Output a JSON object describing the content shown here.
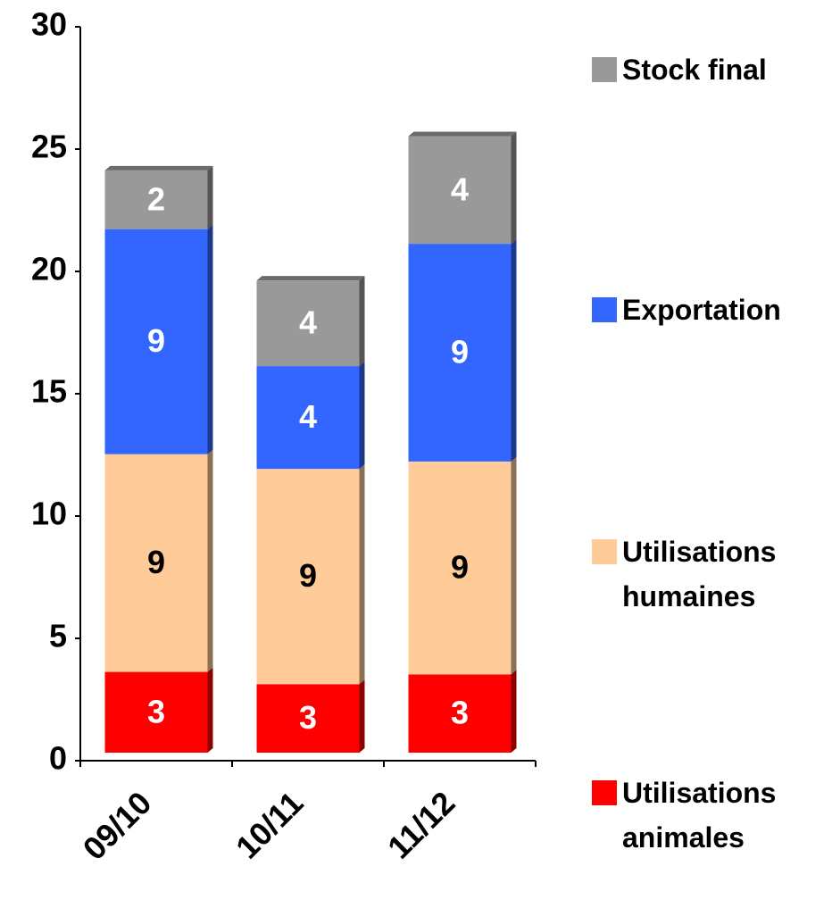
{
  "chart_data": {
    "type": "bar",
    "stacked": true,
    "categories": [
      "09/10",
      "10/11",
      "11/12"
    ],
    "series": [
      {
        "name": "Utilisations animales",
        "color": "#ff0000",
        "values": [
          3.3,
          2.8,
          3.2
        ],
        "value_labels": [
          "3",
          "3",
          "3"
        ]
      },
      {
        "name": "Utilisations humaines",
        "color": "#ffcc99",
        "values": [
          8.9,
          8.8,
          8.7
        ],
        "value_labels": [
          "9",
          "9",
          "9"
        ]
      },
      {
        "name": "Exportation",
        "color": "#3366ff",
        "values": [
          9.2,
          4.2,
          8.9
        ],
        "value_labels": [
          "9",
          "4",
          "9"
        ]
      },
      {
        "name": "Stock final",
        "color": "#999999",
        "values": [
          2.4,
          3.5,
          4.4
        ],
        "value_labels": [
          "2",
          "4",
          "4"
        ]
      }
    ],
    "ylim": [
      0,
      30
    ],
    "yticks": [
      0,
      5,
      10,
      15,
      20,
      25,
      30
    ],
    "grid": false,
    "legend": "right"
  }
}
